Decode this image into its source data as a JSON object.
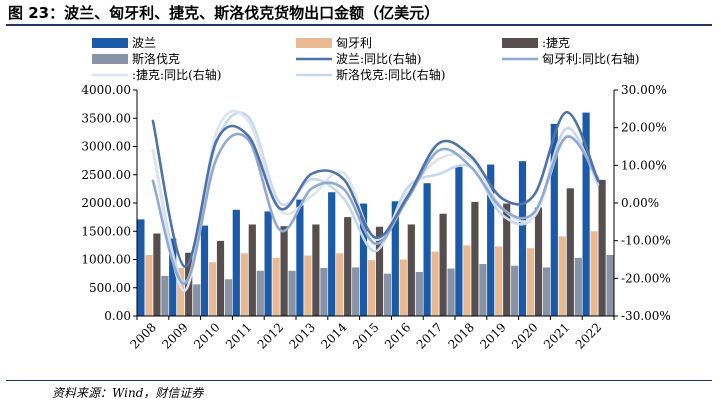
{
  "title": "图 23：波兰、匈牙利、捷克、斯洛伐克货物出口金额（亿美元）",
  "source": "资料来源：Wind，财信证券",
  "chart_data": {
    "type": "bar",
    "categories": [
      "2008",
      "2009",
      "2010",
      "2011",
      "2012",
      "2013",
      "2014",
      "2015",
      "2016",
      "2017",
      "2018",
      "2019",
      "2020",
      "2021",
      "2022"
    ],
    "series": [
      {
        "name": "波兰",
        "kind": "bar",
        "axis": "left",
        "color": "#1b5aa8",
        "values": [
          1710,
          1370,
          1600,
          1880,
          1850,
          2060,
          2190,
          1990,
          2030,
          2350,
          2640,
          2680,
          2740,
          3400,
          3600
        ]
      },
      {
        "name": "匈牙利",
        "kind": "bar",
        "axis": "left",
        "color": "#e9b994",
        "values": [
          1080,
          850,
          950,
          1110,
          1030,
          1070,
          1110,
          990,
          1000,
          1140,
          1250,
          1230,
          1200,
          1410,
          1500
        ]
      },
      {
        "name": ":捷克",
        "kind": "bar",
        "axis": "left",
        "color": "#574f4f",
        "values": [
          1460,
          1120,
          1330,
          1620,
          1590,
          1620,
          1750,
          1580,
          1620,
          1810,
          2020,
          1990,
          1920,
          2260,
          2410
        ]
      },
      {
        "name": "斯洛伐克",
        "kind": "bar",
        "axis": "left",
        "color": "#8894a6",
        "values": [
          710,
          560,
          650,
          800,
          800,
          850,
          860,
          750,
          780,
          840,
          920,
          890,
          860,
          1030,
          1080
        ]
      },
      {
        "name": "波兰:同比(右轴)",
        "kind": "line",
        "axis": "right",
        "color": "#4f72a8",
        "values": [
          21.8,
          -16.9,
          16.5,
          17.8,
          -1.5,
          7.8,
          6.3,
          -9.2,
          1.6,
          15.9,
          12.4,
          1.1,
          2.3,
          24.1,
          5.9
        ]
      },
      {
        "name": "匈牙利:同比(右轴)",
        "kind": "line",
        "axis": "right",
        "color": "#8fa9d1",
        "values": [
          5.9,
          -21.4,
          11.8,
          16.8,
          -7.2,
          3.9,
          3.7,
          -10.8,
          1.0,
          14.0,
          9.6,
          -1.6,
          -2.4,
          17.5,
          6.4
        ]
      },
      {
        "name": ":捷克:同比(右轴)",
        "kind": "line",
        "axis": "right",
        "color": "#dde4f0",
        "values": [
          13.9,
          -23.3,
          18.8,
          21.8,
          -1.9,
          1.9,
          8.0,
          -9.7,
          2.5,
          11.7,
          11.6,
          -1.5,
          -3.5,
          17.7,
          6.6
        ]
      },
      {
        "name": "斯洛伐克:同比(右轴)",
        "kind": "line",
        "axis": "right",
        "color": "#c6d7ee",
        "values": [
          14.0,
          -21.1,
          16.1,
          22.9,
          0.0,
          6.3,
          1.2,
          -12.8,
          4.0,
          7.7,
          9.5,
          -3.3,
          -3.4,
          19.8,
          4.9
        ]
      }
    ],
    "ylim": [
      0,
      4000
    ],
    "y2lim": [
      -30,
      30
    ],
    "yticks": [
      "0.00",
      "500.00",
      "1000.00",
      "1500.00",
      "2000.00",
      "2500.00",
      "3000.00",
      "3500.00",
      "4000.00"
    ],
    "y2ticks": [
      "-30.00%",
      "-20.00%",
      "-10.00%",
      "0.00%",
      "10.00%",
      "20.00%",
      "30.00%"
    ],
    "legend_position": "top",
    "grid": false
  }
}
